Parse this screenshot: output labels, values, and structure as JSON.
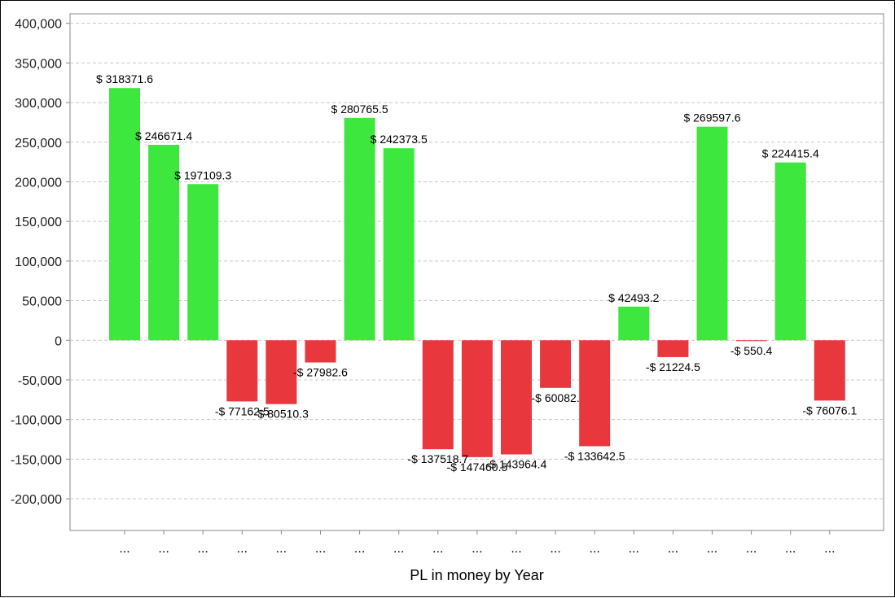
{
  "chart_data": {
    "type": "bar",
    "title": "",
    "xlabel": "PL in money by Year",
    "ylabel": "",
    "ylim": [
      -240000,
      412000
    ],
    "yticks": [
      400000,
      350000,
      300000,
      250000,
      200000,
      150000,
      100000,
      50000,
      0,
      -50000,
      -100000,
      -150000,
      -200000
    ],
    "ytick_labels": [
      "400,000",
      "350,000",
      "300,000",
      "250,000",
      "200,000",
      "150,000",
      "100,000",
      "50,000",
      "0",
      "-50,000",
      "-100,000",
      "-150,000",
      "-200,000"
    ],
    "grid": true,
    "categories": [
      "...",
      "...",
      "...",
      "...",
      "...",
      "...",
      "...",
      "...",
      "...",
      "...",
      "...",
      "...",
      "...",
      "...",
      "...",
      "...",
      "...",
      "...",
      "..."
    ],
    "values": [
      318371.6,
      246671.4,
      197109.3,
      -77162.5,
      -80510.3,
      -27982.6,
      280765.5,
      242373.5,
      -137518.7,
      -147460.5,
      -143964.4,
      -60082,
      -133642.5,
      42493.2,
      -21224.5,
      269597.6,
      -550.4,
      224415.4,
      -76076.1
    ],
    "data_labels": [
      "$ 318371.6",
      "$ 246671.4",
      "$ 197109.3",
      "-$ 77162.5",
      "-$ 80510.3",
      "-$ 27982.6",
      "$ 280765.5",
      "$ 242373.5",
      "-$ 137518.7",
      "-$ 147460.5",
      "-$ 143964.4",
      "-$ 60082.",
      "-$ 133642.5",
      "$ 42493.2",
      "-$ 21224.5",
      "$ 269597.6",
      "-$ 550.4",
      "$ 224415.4",
      "-$ 76076.1"
    ],
    "colors": {
      "positive": "#3de73d",
      "negative": "#e8373d",
      "grid": "#c8c8c8",
      "axis": "#888888"
    }
  }
}
